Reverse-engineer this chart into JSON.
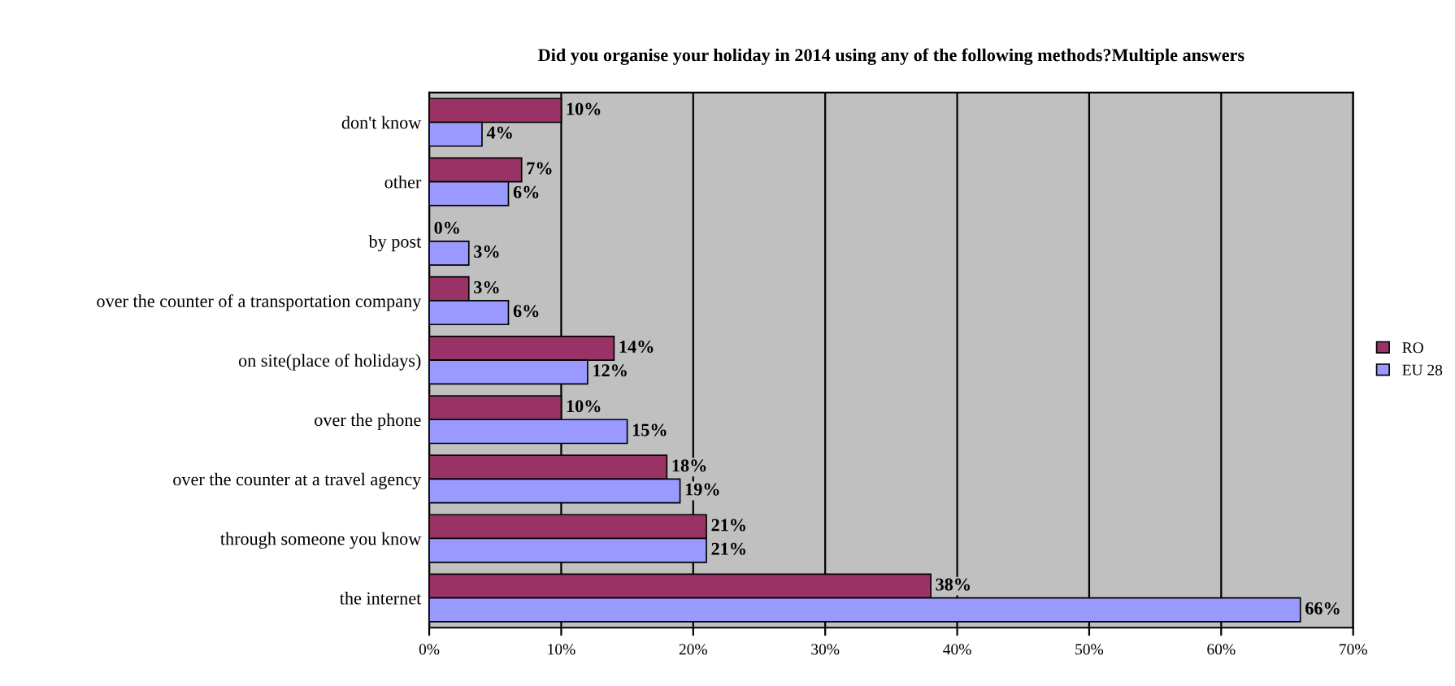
{
  "chart_data": {
    "type": "bar",
    "orientation": "horizontal",
    "title": "Did you organise your holiday in 2014 using any of the following methods?Multiple answers",
    "categories": [
      "don't know",
      "other",
      "by post",
      "over the counter of a transportation company",
      "on site(place of holidays)",
      "over the phone",
      "over the counter at a travel agency",
      "through someone you know",
      "the internet"
    ],
    "series": [
      {
        "name": "RO",
        "color": "#993366",
        "values": [
          10,
          7,
          0,
          3,
          14,
          10,
          18,
          21,
          38
        ],
        "value_labels": [
          "10%",
          "7%",
          "0%",
          "3%",
          "14%",
          "10%",
          "18%",
          "21%",
          "38%"
        ]
      },
      {
        "name": "EU 28",
        "color": "#9999ff",
        "values": [
          4,
          6,
          3,
          6,
          12,
          15,
          19,
          21,
          66
        ],
        "value_labels": [
          "4%",
          "6%",
          "3%",
          "6%",
          "12%",
          "15%",
          "19%",
          "21%",
          "66%"
        ]
      }
    ],
    "xlim": [
      0,
      70
    ],
    "xticks": [
      {
        "value": 0,
        "label": "0%"
      },
      {
        "value": 10,
        "label": "10%"
      },
      {
        "value": 20,
        "label": "20%"
      },
      {
        "value": 30,
        "label": "30%"
      },
      {
        "value": 40,
        "label": "40%"
      },
      {
        "value": 50,
        "label": "50%"
      },
      {
        "value": 60,
        "label": "60%"
      },
      {
        "value": 70,
        "label": "70%"
      }
    ],
    "grid": "x",
    "legend": "right"
  }
}
